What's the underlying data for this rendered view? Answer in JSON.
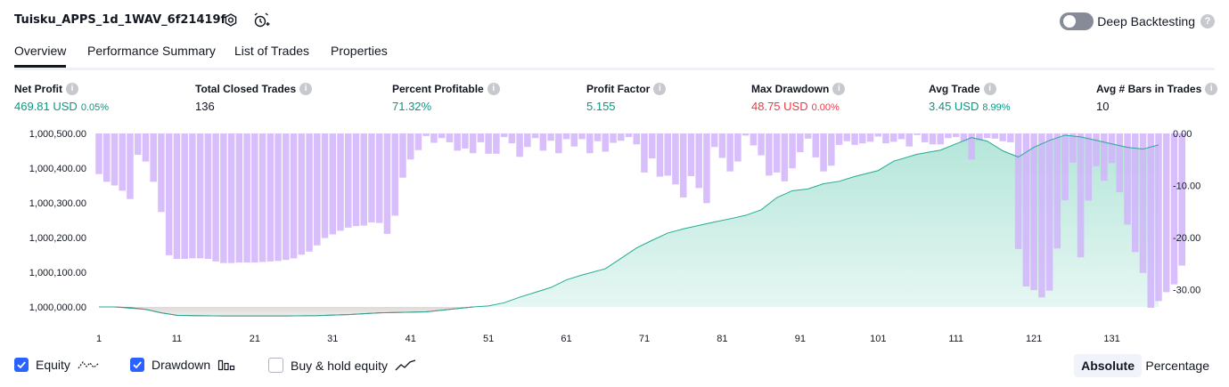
{
  "header": {
    "title": "Tuisku_APPS_1d_1WAV_6f21419f",
    "deep_backtesting_label": "Deep Backtesting",
    "help_glyph": "?"
  },
  "tabs": [
    {
      "label": "Overview",
      "active": true
    },
    {
      "label": "Performance Summary",
      "active": false
    },
    {
      "label": "List of Trades",
      "active": false
    },
    {
      "label": "Properties",
      "active": false
    }
  ],
  "metrics": [
    {
      "label": "Net Profit",
      "value": "469.81 USD",
      "sub": "0.05%",
      "color": "green"
    },
    {
      "label": "Total Closed Trades",
      "value": "136",
      "sub": "",
      "color": "dark"
    },
    {
      "label": "Percent Profitable",
      "value": "71.32%",
      "sub": "",
      "color": "green"
    },
    {
      "label": "Profit Factor",
      "value": "5.155",
      "sub": "",
      "color": "green"
    },
    {
      "label": "Max Drawdown",
      "value": "48.75 USD",
      "sub": "0.00%",
      "color": "red"
    },
    {
      "label": "Avg Trade",
      "value": "3.45 USD",
      "sub": "8.99%",
      "color": "green"
    },
    {
      "label": "Avg # Bars in Trades",
      "value": "10",
      "sub": "",
      "color": "dark"
    }
  ],
  "chart_data": {
    "type": "area",
    "left_axis": {
      "ticks": [
        "1,000,500.00",
        "1,000,400.00",
        "1,000,300.00",
        "1,000,200.00",
        "1,000,100.00",
        "1,000,000.00"
      ],
      "range": [
        1000000,
        1000500
      ]
    },
    "right_axis": {
      "ticks": [
        "0.00",
        "-10.00",
        "-20.00",
        "-30.00"
      ],
      "range": [
        -33.5,
        0
      ]
    },
    "x_ticks": [
      "1",
      "11",
      "21",
      "31",
      "41",
      "51",
      "61",
      "71",
      "81",
      "91",
      "101",
      "111",
      "121",
      "131"
    ],
    "x_range": [
      1,
      137
    ],
    "equity": {
      "x": [
        1,
        3,
        5,
        7,
        9,
        11,
        13,
        17,
        21,
        25,
        29,
        33,
        37,
        41,
        43,
        46,
        49,
        51,
        53,
        55,
        57,
        59,
        61,
        63,
        66,
        68,
        70,
        72,
        74,
        76,
        78,
        80,
        82,
        84,
        86,
        88,
        90,
        92,
        94,
        96,
        98,
        101,
        103,
        106,
        109,
        111,
        113,
        115,
        117,
        119,
        121,
        123,
        125,
        127,
        129,
        131,
        133,
        135,
        137
      ],
      "y": [
        1000000,
        1000000,
        999998,
        999993,
        999983,
        999976,
        999975,
        999974,
        999974,
        999974,
        999975,
        999978,
        999983,
        999985,
        999986,
        999993,
        1000000,
        1000003,
        1000012,
        1000028,
        1000042,
        1000056,
        1000078,
        1000092,
        1000110,
        1000140,
        1000170,
        1000192,
        1000213,
        1000225,
        1000235,
        1000245,
        1000254,
        1000264,
        1000280,
        1000315,
        1000335,
        1000340,
        1000355,
        1000362,
        1000376,
        1000393,
        1000420,
        1000440,
        1000452,
        1000470,
        1000488,
        1000478,
        1000450,
        1000432,
        1000460,
        1000480,
        1000495,
        1000490,
        1000480,
        1000470,
        1000460,
        1000455,
        1000467
      ]
    },
    "drawdown": [
      -7.8,
      -9.3,
      -10,
      -11,
      -12.6,
      -4.1,
      -5.4,
      -9.3,
      -15.1,
      -23.4,
      -24.1,
      -24.1,
      -24,
      -24,
      -24.1,
      -24.6,
      -24.9,
      -24.9,
      -24.8,
      -24.8,
      -24.8,
      -24.7,
      -24.6,
      -24.5,
      -24.3,
      -24,
      -23.3,
      -22.7,
      -21.5,
      -20.1,
      -19.4,
      -18.7,
      -18.1,
      -17.8,
      -17.7,
      -17.1,
      -17.2,
      -19.3,
      -15.8,
      -8.5,
      -5,
      -3.2,
      -0.5,
      -1.8,
      -0.9,
      -1.7,
      -3.3,
      -2.9,
      -3.8,
      -1.7,
      -3.9,
      -3.9,
      -0.7,
      -1.9,
      -4.5,
      -2.6,
      -0.9,
      -3.3,
      -1.4,
      -3.8,
      -1.1,
      -2.5,
      -1.1,
      -3.8,
      -1.5,
      -3.5,
      -1.8,
      -1.4,
      -0.7,
      -2.1,
      -7.5,
      -4.8,
      -8.3,
      -8.1,
      -9.8,
      -12.3,
      -8.2,
      -10.5,
      -13.4,
      -2.6,
      -4.7,
      -7.3,
      -5.4,
      -0.4,
      -2.3,
      -4.2,
      -8.1,
      -7.5,
      -9.2,
      -6.7,
      -3.6,
      -1,
      -4.6,
      -7.3,
      -6.2,
      -2.2,
      -1.5,
      -2.2,
      -1.9,
      -1.6,
      -0.6,
      -1.9,
      -1.6,
      -1.1,
      -2.5,
      -0.3,
      -1.7,
      -2.1,
      -2.1,
      -0.9,
      -0.7,
      -1.5,
      -5,
      -1.4,
      -0.9,
      -1,
      -1.5,
      -1.7,
      -22.2,
      -29.4,
      -30.1,
      -31.5,
      -30.2,
      -22.1,
      -12.8,
      -5.6,
      -23.8,
      -12.9,
      -6.3,
      -9.1,
      -5.7,
      -11.3,
      -17.5,
      -22.8,
      -26.8,
      -33.5,
      -32.2,
      -30.5,
      -29,
      -25.4
    ],
    "legend": [
      "Equity",
      "Drawdown",
      "Buy & hold equity"
    ]
  },
  "footer": {
    "equity_label": "Equity",
    "drawdown_label": "Drawdown",
    "buyhold_label": "Buy & hold equity",
    "absolute_label": "Absolute",
    "percentage_label": "Percentage"
  },
  "colors": {
    "equity_line": "#22ab94",
    "equity_fill": "#a7e1d3",
    "equity_neg_line": "#f23645",
    "drawdown_bar": "#d1b4fb",
    "accent": "#2962ff"
  }
}
